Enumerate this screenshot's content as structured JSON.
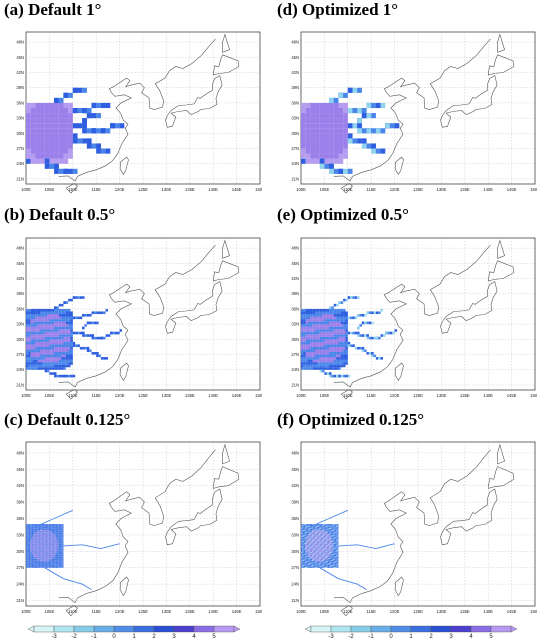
{
  "panels": [
    {
      "id": "a",
      "title": "(a) Default 1°",
      "resolution_deg": 1,
      "variant": "default"
    },
    {
      "id": "d",
      "title": "(d) Optimized 1°",
      "resolution_deg": 1,
      "variant": "optimized"
    },
    {
      "id": "b",
      "title": "(b) Default 0.5°",
      "resolution_deg": 0.5,
      "variant": "default"
    },
    {
      "id": "e",
      "title": "(e) Optimized 0.5°",
      "resolution_deg": 0.5,
      "variant": "optimized"
    },
    {
      "id": "c",
      "title": "(c) Default 0.125°",
      "resolution_deg": 0.125,
      "variant": "default"
    },
    {
      "id": "f",
      "title": "(f) Optimized 0.125°",
      "resolution_deg": 0.125,
      "variant": "optimized"
    }
  ],
  "axes": {
    "lon_labels": [
      "100E",
      "105E",
      "110E",
      "115E",
      "120E",
      "125E",
      "130E",
      "135E",
      "140E",
      "145E",
      "150E"
    ],
    "lat_labels": [
      "21N",
      "24N",
      "27N",
      "30N",
      "33N",
      "36N",
      "39N",
      "42N",
      "45N",
      "48N"
    ],
    "lon_range": [
      100,
      150
    ],
    "lat_range": [
      20,
      50
    ],
    "gridlines": true
  },
  "colorbar": {
    "labels": [
      "-3",
      "-2",
      "-1",
      "0",
      "1",
      "2",
      "3",
      "4",
      "5"
    ],
    "colors": [
      "#d6f3f6",
      "#aee5ef",
      "#86cdea",
      "#69aee8",
      "#4f8de6",
      "#3b6ee0",
      "#2a4fd4",
      "#4b3fcf",
      "#8a6ee6",
      "#b79af2"
    ]
  },
  "legend_colors": {
    "core_purple": "#9b7fea",
    "core_purple_light": "#b59cf0",
    "blue": "#2f5fe0",
    "mid_blue": "#4a86ea",
    "light_blue": "#8fd3ef"
  }
}
